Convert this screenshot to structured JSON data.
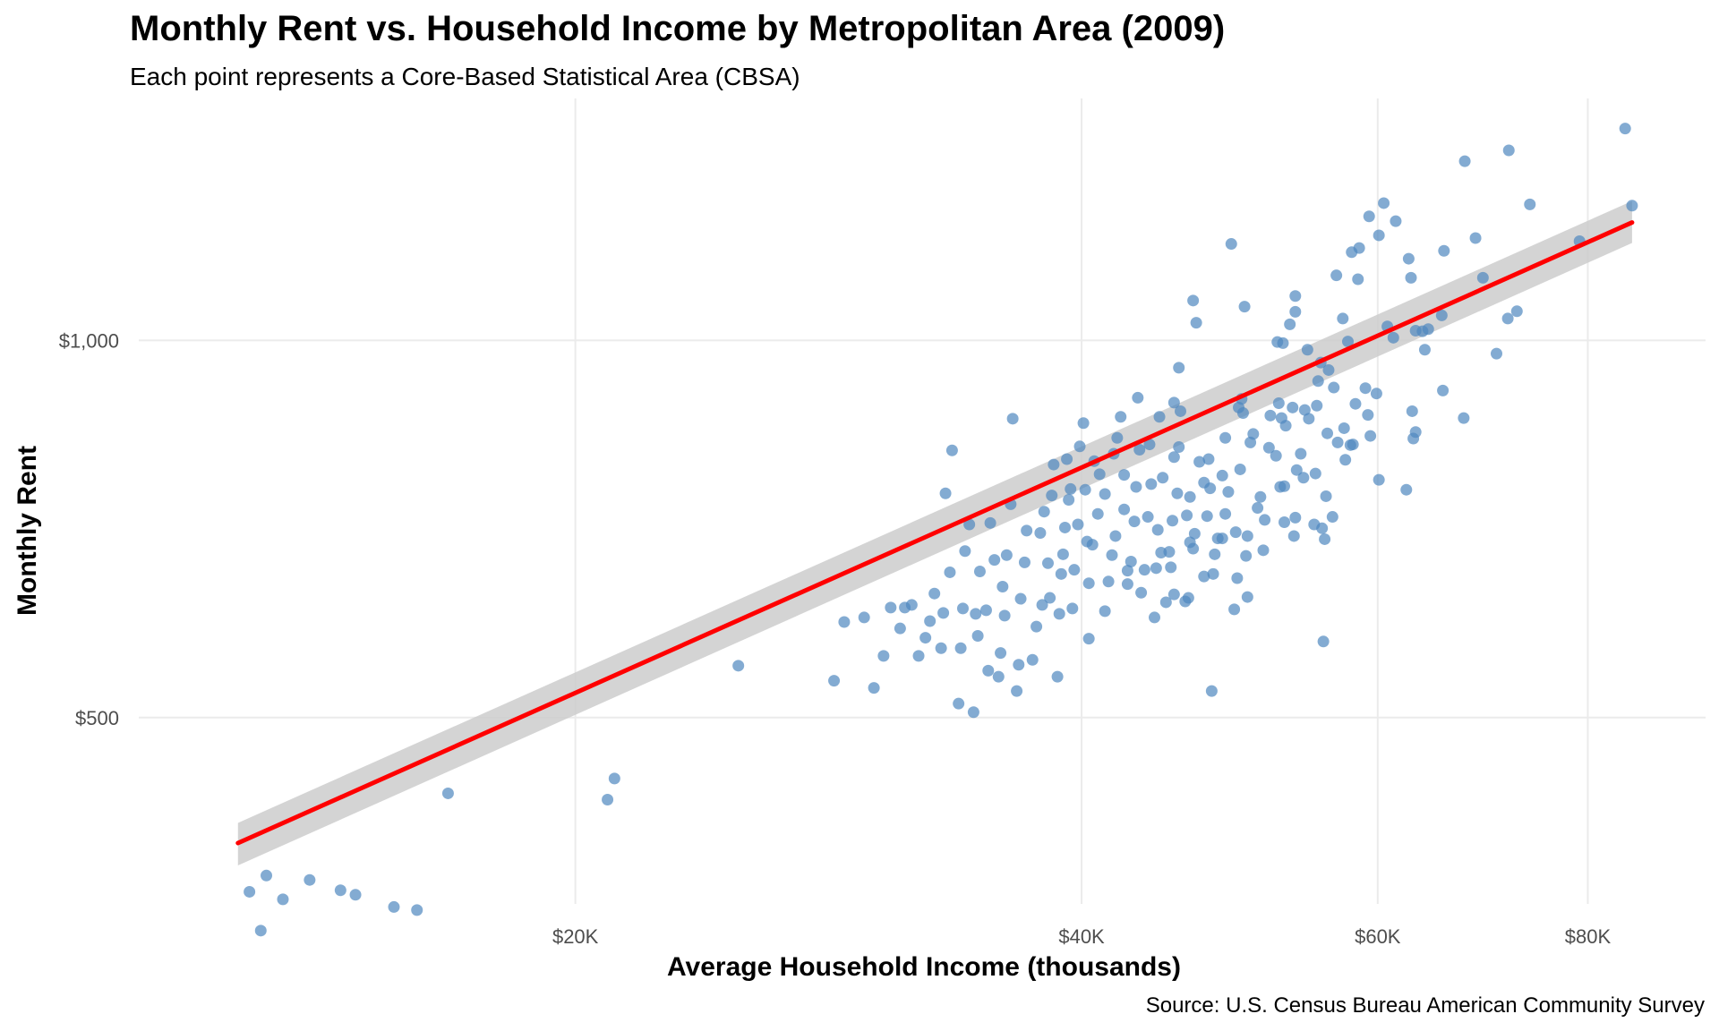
{
  "chart_data": {
    "type": "scatter",
    "title": "Monthly Rent vs. Household Income by Metropolitan Area (2009)",
    "subtitle": "Each point represents a Core-Based Statistical Area (CBSA)",
    "xlabel": "Average Household Income (thousands)",
    "ylabel": "Monthly Rent",
    "caption": "Source: U.S. Census Bureau American Community Survey",
    "x_scale": "log",
    "y_scale": "log",
    "xlim": [
      11000,
      94000
    ],
    "ylim": [
      355,
      1560
    ],
    "x_ticks": [
      {
        "value": 20000,
        "label": "$20K"
      },
      {
        "value": 40000,
        "label": "$40K"
      },
      {
        "value": 60000,
        "label": "$60K"
      },
      {
        "value": 80000,
        "label": "$80K"
      }
    ],
    "y_ticks": [
      {
        "value": 500,
        "label": "$500"
      },
      {
        "value": 1000,
        "label": "$1,000"
      }
    ],
    "grid": true,
    "point_color": "#4f87bf",
    "trend_color": "#ff0000",
    "ribbon_color": "#cccccc",
    "trend": {
      "type": "linear fit with confidence band",
      "line": [
        [
          12600,
          397
        ],
        [
          85000,
          1242
        ]
      ],
      "band_upper": [
        [
          12600,
          412
        ],
        [
          85000,
          1292
        ]
      ],
      "band_lower": [
        [
          12600,
          381
        ],
        [
          85000,
          1196
        ]
      ]
    },
    "points": [
      [
        84.2,
        1476
      ],
      [
        85.0,
        1281
      ],
      [
        79.1,
        1200
      ],
      [
        71.8,
        1418
      ],
      [
        73.9,
        1284
      ],
      [
        67.6,
        1390
      ],
      [
        68.6,
        1207
      ],
      [
        69.3,
        1122
      ],
      [
        71.7,
        1041
      ],
      [
        72.6,
        1055
      ],
      [
        70.6,
        976
      ],
      [
        67.5,
        867
      ],
      [
        65.7,
        1179
      ],
      [
        65.5,
        1047
      ],
      [
        65.6,
        912
      ],
      [
        64.0,
        983
      ],
      [
        64.3,
        1021
      ],
      [
        63.8,
        1017
      ],
      [
        63.2,
        1018
      ],
      [
        62.8,
        1122
      ],
      [
        62.6,
        1162
      ],
      [
        62.9,
        878
      ],
      [
        63.0,
        835
      ],
      [
        63.2,
        845
      ],
      [
        62.4,
        760
      ],
      [
        61.5,
        1245
      ],
      [
        61.3,
        1005
      ],
      [
        60.8,
        1026
      ],
      [
        60.5,
        1287
      ],
      [
        60.1,
        1213
      ],
      [
        59.9,
        907
      ],
      [
        60.1,
        774
      ],
      [
        59.3,
        1256
      ],
      [
        59.0,
        916
      ],
      [
        59.2,
        872
      ],
      [
        59.4,
        839
      ],
      [
        58.5,
        1185
      ],
      [
        58.4,
        1119
      ],
      [
        57.9,
        1176
      ],
      [
        58.2,
        890
      ],
      [
        58.0,
        826
      ],
      [
        57.6,
        998
      ],
      [
        57.8,
        825
      ],
      [
        57.4,
        803
      ],
      [
        57.2,
        1041
      ],
      [
        57.3,
        851
      ],
      [
        56.7,
        1127
      ],
      [
        56.5,
        917
      ],
      [
        56.8,
        829
      ],
      [
        56.4,
        723
      ],
      [
        56.1,
        947
      ],
      [
        56.0,
        843
      ],
      [
        55.9,
        751
      ],
      [
        55.8,
        694
      ],
      [
        55.5,
        960
      ],
      [
        55.6,
        708
      ],
      [
        55.7,
        575
      ],
      [
        55.3,
        928
      ],
      [
        55.2,
        887
      ],
      [
        55.1,
        783
      ],
      [
        55.0,
        713
      ],
      [
        54.5,
        983
      ],
      [
        54.6,
        866
      ],
      [
        54.3,
        880
      ],
      [
        54.0,
        812
      ],
      [
        54.2,
        777
      ],
      [
        53.6,
        1085
      ],
      [
        53.6,
        1054
      ],
      [
        53.7,
        788
      ],
      [
        53.6,
        722
      ],
      [
        53.5,
        698
      ],
      [
        53.2,
        1030
      ],
      [
        53.4,
        884
      ],
      [
        52.9,
        855
      ],
      [
        52.8,
        765
      ],
      [
        52.8,
        716
      ],
      [
        52.7,
        995
      ],
      [
        52.6,
        867
      ],
      [
        52.5,
        764
      ],
      [
        52.3,
        997
      ],
      [
        52.4,
        891
      ],
      [
        52.2,
        809
      ],
      [
        51.8,
        871
      ],
      [
        51.7,
        821
      ],
      [
        51.4,
        719
      ],
      [
        51.3,
        680
      ],
      [
        51.1,
        750
      ],
      [
        50.9,
        735
      ],
      [
        50.6,
        842
      ],
      [
        50.4,
        829
      ],
      [
        50.2,
        698
      ],
      [
        50.1,
        673
      ],
      [
        50.0,
        1064
      ],
      [
        50.2,
        624
      ],
      [
        49.8,
        898
      ],
      [
        49.6,
        884
      ],
      [
        49.9,
        875
      ],
      [
        49.7,
        789
      ],
      [
        49.4,
        703
      ],
      [
        49.5,
        646
      ],
      [
        49.3,
        610
      ],
      [
        49.1,
        1194
      ],
      [
        48.7,
        836
      ],
      [
        48.5,
        780
      ],
      [
        48.9,
        757
      ],
      [
        48.7,
        727
      ],
      [
        48.5,
        695
      ],
      [
        48.2,
        695
      ],
      [
        48.0,
        675
      ],
      [
        47.9,
        651
      ],
      [
        47.8,
        525
      ],
      [
        47.6,
        804
      ],
      [
        47.7,
        762
      ],
      [
        47.5,
        724
      ],
      [
        47.3,
        648
      ],
      [
        47.0,
        800
      ],
      [
        47.3,
        770
      ],
      [
        46.6,
        1076
      ],
      [
        46.8,
        1033
      ],
      [
        46.4,
        750
      ],
      [
        46.2,
        725
      ],
      [
        46.7,
        701
      ],
      [
        46.4,
        690
      ],
      [
        46.6,
        682
      ],
      [
        46.3,
        623
      ],
      [
        46.1,
        619
      ],
      [
        45.7,
        951
      ],
      [
        45.8,
        878
      ],
      [
        45.7,
        822
      ],
      [
        45.4,
        892
      ],
      [
        45.4,
        807
      ],
      [
        45.6,
        755
      ],
      [
        45.3,
        718
      ],
      [
        45.2,
        659
      ],
      [
        45.4,
        627
      ],
      [
        45.1,
        678
      ],
      [
        44.9,
        618
      ],
      [
        44.5,
        869
      ],
      [
        44.7,
        777
      ],
      [
        44.4,
        706
      ],
      [
        44.6,
        677
      ],
      [
        44.3,
        658
      ],
      [
        44.2,
        601
      ],
      [
        43.9,
        826
      ],
      [
        44.0,
        768
      ],
      [
        43.8,
        723
      ],
      [
        43.6,
        656
      ],
      [
        43.4,
        629
      ],
      [
        43.2,
        900
      ],
      [
        43.3,
        818
      ],
      [
        43.1,
        764
      ],
      [
        43.0,
        717
      ],
      [
        42.8,
        666
      ],
      [
        42.6,
        655
      ],
      [
        42.6,
        639
      ],
      [
        42.4,
        781
      ],
      [
        42.2,
        869
      ],
      [
        42.4,
        733
      ],
      [
        42.0,
        836
      ],
      [
        41.8,
        812
      ],
      [
        41.9,
        698
      ],
      [
        41.7,
        674
      ],
      [
        41.5,
        642
      ],
      [
        41.3,
        608
      ],
      [
        41.0,
        782
      ],
      [
        41.3,
        754
      ],
      [
        40.7,
        801
      ],
      [
        40.9,
        727
      ],
      [
        40.6,
        687
      ],
      [
        40.4,
        640
      ],
      [
        40.4,
        578
      ],
      [
        40.1,
        859
      ],
      [
        40.2,
        760
      ],
      [
        40.3,
        691
      ],
      [
        39.9,
        823
      ],
      [
        39.8,
        713
      ],
      [
        39.6,
        656
      ],
      [
        39.5,
        611
      ],
      [
        39.2,
        804
      ],
      [
        39.4,
        761
      ],
      [
        39.3,
        746
      ],
      [
        39.1,
        709
      ],
      [
        39.0,
        675
      ],
      [
        38.9,
        651
      ],
      [
        38.8,
        605
      ],
      [
        38.7,
        539
      ],
      [
        38.5,
        796
      ],
      [
        38.4,
        752
      ],
      [
        38.2,
        664
      ],
      [
        38.3,
        623
      ],
      [
        38.0,
        730
      ],
      [
        37.8,
        702
      ],
      [
        37.9,
        615
      ],
      [
        37.6,
        591
      ],
      [
        37.4,
        556
      ],
      [
        37.1,
        705
      ],
      [
        37.0,
        665
      ],
      [
        36.8,
        622
      ],
      [
        36.7,
        551
      ],
      [
        36.6,
        525
      ],
      [
        36.4,
        866
      ],
      [
        36.3,
        740
      ],
      [
        36.1,
        674
      ],
      [
        35.9,
        636
      ],
      [
        36.0,
        603
      ],
      [
        35.8,
        563
      ],
      [
        35.7,
        539
      ],
      [
        35.3,
        715
      ],
      [
        35.5,
        668
      ],
      [
        35.1,
        609
      ],
      [
        35.2,
        545
      ],
      [
        34.8,
        654
      ],
      [
        34.6,
        605
      ],
      [
        34.7,
        581
      ],
      [
        34.5,
        505
      ],
      [
        34.3,
        713
      ],
      [
        34.1,
        679
      ],
      [
        34.0,
        611
      ],
      [
        33.9,
        568
      ],
      [
        33.8,
        513
      ],
      [
        33.5,
        817
      ],
      [
        33.2,
        755
      ],
      [
        33.4,
        653
      ],
      [
        33.1,
        606
      ],
      [
        33.0,
        568
      ],
      [
        32.7,
        628
      ],
      [
        32.5,
        597
      ],
      [
        32.3,
        579
      ],
      [
        32.0,
        560
      ],
      [
        31.7,
        615
      ],
      [
        31.4,
        612
      ],
      [
        31.2,
        589
      ],
      [
        30.8,
        612
      ],
      [
        30.5,
        560
      ],
      [
        30.1,
        528
      ],
      [
        29.7,
        601
      ],
      [
        28.9,
        596
      ],
      [
        28.5,
        535
      ],
      [
        25.0,
        550
      ],
      [
        21.1,
        447
      ],
      [
        20.9,
        430
      ],
      [
        16.8,
        435
      ],
      [
        16.1,
        351
      ],
      [
        15.6,
        353
      ],
      [
        14.8,
        361
      ],
      [
        14.5,
        364
      ],
      [
        13.9,
        371
      ],
      [
        13.4,
        358
      ],
      [
        13.1,
        374
      ],
      [
        12.8,
        363
      ],
      [
        13.0,
        338
      ]
    ]
  }
}
